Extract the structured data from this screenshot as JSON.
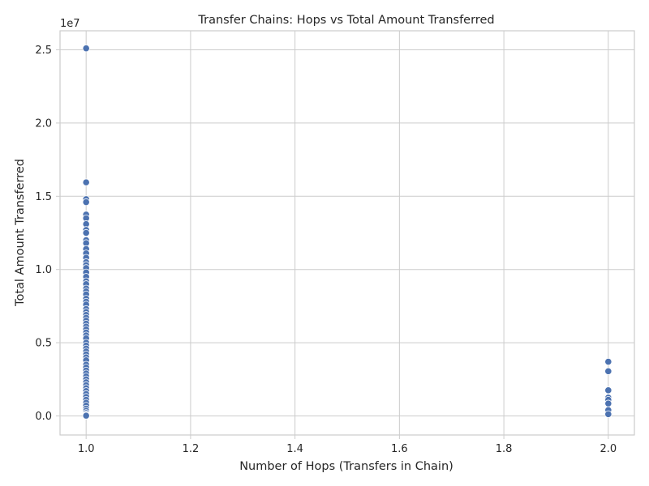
{
  "chart_data": {
    "type": "scatter",
    "title": "Transfer Chains: Hops vs Total Amount Transferred",
    "xlabel": "Number of Hops (Transfers in Chain)",
    "ylabel": "Total Amount Transferred",
    "y_offset_label": "1e7",
    "xlim": [
      0.95,
      2.05
    ],
    "ylim": [
      -1300000,
      26300000
    ],
    "x_ticks": [
      1.0,
      1.2,
      1.4,
      1.6,
      1.8,
      2.0
    ],
    "x_tick_labels": [
      "1.0",
      "1.2",
      "1.4",
      "1.6",
      "1.8",
      "2.0"
    ],
    "y_ticks": [
      0,
      5000000,
      10000000,
      15000000,
      20000000,
      25000000
    ],
    "y_tick_labels": [
      "0.0",
      "0.5",
      "1.0",
      "1.5",
      "2.0",
      "2.5"
    ],
    "grid": true,
    "point_color": "#4c72b0",
    "series": [
      {
        "x": [
          1,
          1,
          1,
          1,
          1,
          1,
          1,
          1,
          1,
          1,
          1,
          1,
          1,
          1,
          1,
          1,
          1,
          1,
          1,
          1,
          1,
          1,
          1,
          1,
          1,
          1,
          1,
          1,
          1,
          1,
          1,
          1,
          1,
          1,
          1,
          1,
          1,
          1,
          1,
          1,
          1,
          1,
          1,
          1,
          1,
          1,
          1,
          1,
          1,
          1,
          1,
          1,
          1,
          1,
          1,
          1,
          1,
          1,
          1,
          1,
          1,
          1,
          1,
          1,
          1,
          1,
          2,
          2,
          2,
          2,
          2,
          2,
          2,
          2
        ],
        "y": [
          25100000,
          15950000,
          14800000,
          14600000,
          13750000,
          13500000,
          13100000,
          12700000,
          12500000,
          12000000,
          11800000,
          11400000,
          11100000,
          10800000,
          10500000,
          10300000,
          10100000,
          9800000,
          9500000,
          9200000,
          9000000,
          8700000,
          8500000,
          8300000,
          8000000,
          7800000,
          7600000,
          7300000,
          7100000,
          6900000,
          6700000,
          6500000,
          6300000,
          6100000,
          5900000,
          5700000,
          5500000,
          5300000,
          5000000,
          4800000,
          4600000,
          4400000,
          4200000,
          4000000,
          3800000,
          3500000,
          3300000,
          3100000,
          2900000,
          2700000,
          2500000,
          2300000,
          2100000,
          1900000,
          1700000,
          1500000,
          1300000,
          1100000,
          900000,
          700000,
          500000,
          350000,
          200000,
          100000,
          50000,
          20000,
          3700000,
          3050000,
          1750000,
          1250000,
          1100000,
          850000,
          400000,
          120000
        ]
      }
    ]
  }
}
